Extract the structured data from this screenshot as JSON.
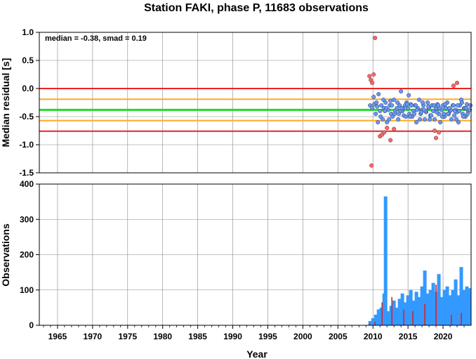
{
  "colors": {
    "zero_line": "#ee2222",
    "median_line": "#22dd22",
    "smad_line": "#ffaa22",
    "outlier_band": "#ee2222",
    "inlier_point": "#6699ee",
    "outlier_point": "#ff6666",
    "bar_total": "#3399ff",
    "bar_outlier": "#dd2222",
    "grid": "#888888"
  },
  "chart_data": [
    {
      "type": "scatter",
      "title": "Station FAKI, phase P, 11683 observations",
      "xlabel": "",
      "ylabel": "Median residual [s]",
      "xlim": [
        1962.4,
        2024.0
      ],
      "ylim": [
        -1.5,
        1.0
      ],
      "yticks": [
        "1.0",
        "0.5",
        "0.0",
        "-0.5",
        "-1.0",
        "-1.5"
      ],
      "grid": true,
      "annotation": "median = -0.38, smad = 0.19",
      "hlines": {
        "zero": 0.0,
        "median": -0.38,
        "smad_upper": -0.19,
        "smad_lower": -0.57,
        "outlier_upper": 0.0,
        "outlier_lower": -0.76
      },
      "series": [
        {
          "role": "inliers",
          "x": [
            2009.6,
            2009.9,
            2010.2,
            2010.4,
            2010.6,
            2010.8,
            2011.0,
            2011.2,
            2011.4,
            2011.6,
            2011.8,
            2012.0,
            2012.2,
            2012.4,
            2012.6,
            2012.8,
            2013.0,
            2013.2,
            2013.4,
            2013.6,
            2013.8,
            2014.0,
            2014.2,
            2014.4,
            2014.6,
            2014.8,
            2015.0,
            2015.2,
            2015.4,
            2015.6,
            2015.8,
            2016.0,
            2016.2,
            2016.4,
            2016.6,
            2016.8,
            2017.0,
            2017.2,
            2017.4,
            2017.6,
            2017.8,
            2018.0,
            2018.2,
            2018.4,
            2018.6,
            2018.8,
            2019.0,
            2019.2,
            2019.4,
            2019.6,
            2019.8,
            2020.0,
            2020.2,
            2020.4,
            2020.6,
            2020.8,
            2021.0,
            2021.2,
            2021.4,
            2021.6,
            2021.8,
            2022.0,
            2022.2,
            2022.4,
            2022.6,
            2022.8,
            2023.0,
            2023.2,
            2023.4,
            2023.6,
            2023.8,
            2010.1,
            2010.5,
            2011.1,
            2011.5,
            2011.9,
            2012.3,
            2012.7,
            2013.1,
            2013.5,
            2013.9,
            2014.3,
            2014.7,
            2015.1,
            2015.5,
            2015.9,
            2016.3,
            2016.7,
            2017.1,
            2017.5,
            2017.9,
            2018.3,
            2018.7,
            2019.1,
            2019.5,
            2019.9,
            2020.3,
            2020.7,
            2021.1,
            2021.5,
            2021.9,
            2022.3,
            2022.7,
            2023.1,
            2023.5,
            2023.9,
            2010.7,
            2011.7,
            2012.5,
            2013.7,
            2014.1,
            2014.9,
            2015.3,
            2016.1,
            2016.9,
            2017.3,
            2018.1,
            2019.3,
            2020.1,
            2020.9,
            2021.7,
            2022.1,
            2022.9,
            2023.3
          ],
          "y": [
            -0.3,
            -0.35,
            -0.28,
            -0.45,
            -0.32,
            -0.1,
            -0.4,
            -0.3,
            -0.55,
            -0.35,
            -0.25,
            -0.6,
            -0.38,
            -0.3,
            -0.45,
            -0.5,
            -0.2,
            -0.4,
            -0.35,
            -0.55,
            -0.3,
            -0.05,
            -0.4,
            -0.48,
            -0.3,
            -0.25,
            -0.35,
            -0.45,
            -0.28,
            -0.5,
            -0.4,
            -0.3,
            -0.6,
            -0.35,
            -0.2,
            -0.45,
            -0.38,
            -0.3,
            -0.55,
            -0.42,
            -0.25,
            -0.35,
            -0.48,
            -0.3,
            -0.4,
            -0.55,
            -0.35,
            -0.28,
            -0.45,
            -0.6,
            -0.38,
            -0.3,
            -0.5,
            -0.35,
            -0.25,
            -0.45,
            -0.4,
            -0.55,
            -0.3,
            -0.48,
            -0.38,
            -0.42,
            -0.6,
            -0.3,
            -0.2,
            -0.45,
            -0.35,
            -0.5,
            -0.28,
            -0.4,
            -0.38,
            -0.15,
            -0.25,
            -0.5,
            -0.2,
            -0.35,
            -0.55,
            -0.3,
            -0.45,
            -0.25,
            -0.4,
            -0.35,
            -0.5,
            -0.12,
            -0.3,
            -0.45,
            -0.38,
            -0.55,
            -0.25,
            -0.4,
            -0.32,
            -0.48,
            -0.3,
            -0.42,
            -0.35,
            -0.5,
            -0.28,
            -0.45,
            -0.38,
            -0.3,
            -0.55,
            -0.4,
            -0.25,
            -0.35,
            -0.45,
            -0.3,
            -0.6,
            -0.4,
            -0.22,
            -0.45,
            -0.35,
            -0.28,
            -0.5,
            -0.3,
            -0.42,
            -0.38,
            -0.55,
            -0.3,
            -0.45,
            -0.35,
            -0.4,
            -0.3,
            -0.5,
            -0.35
          ]
        },
        {
          "role": "outliers",
          "x": [
            2009.5,
            2009.7,
            2009.9,
            2010.1,
            2010.3,
            2011.0,
            2011.3,
            2011.6,
            2012.0,
            2012.5,
            2013.0,
            2018.8,
            2019.0,
            2019.4,
            2021.5,
            2022.0,
            2009.8
          ],
          "y": [
            0.22,
            0.15,
            0.1,
            0.25,
            0.9,
            -0.85,
            -0.82,
            -0.78,
            -0.7,
            -0.92,
            -0.72,
            -0.75,
            -0.88,
            -0.78,
            0.05,
            0.1,
            -1.37
          ]
        }
      ]
    },
    {
      "type": "bar",
      "title": "",
      "xlabel": "Year",
      "ylabel": "Observations",
      "xlim": [
        1962.4,
        2024.0
      ],
      "ylim": [
        0,
        400
      ],
      "yticks": [
        "400",
        "300",
        "200",
        "100",
        "0"
      ],
      "xticks": [
        "1965",
        "1970",
        "1975",
        "1980",
        "1985",
        "1990",
        "1995",
        "2000",
        "2005",
        "2010",
        "2015",
        "2020"
      ],
      "grid": true,
      "series": [
        {
          "role": "total",
          "x": [
            2009.6,
            2010.0,
            2010.4,
            2010.8,
            2011.2,
            2011.6,
            2011.8,
            2012.2,
            2012.6,
            2013.0,
            2013.4,
            2013.8,
            2014.2,
            2014.6,
            2015.0,
            2015.4,
            2015.8,
            2016.2,
            2016.6,
            2017.0,
            2017.4,
            2017.8,
            2018.2,
            2018.6,
            2019.0,
            2019.4,
            2019.8,
            2020.2,
            2020.6,
            2021.0,
            2021.4,
            2021.8,
            2022.2,
            2022.6,
            2023.0,
            2023.4,
            2023.8
          ],
          "y": [
            12,
            20,
            30,
            45,
            50,
            90,
            365,
            40,
            55,
            70,
            50,
            75,
            90,
            65,
            85,
            100,
            70,
            95,
            80,
            110,
            155,
            90,
            100,
            120,
            95,
            145,
            80,
            100,
            110,
            85,
            100,
            130,
            85,
            165,
            100,
            110,
            105
          ]
        },
        {
          "role": "outliers",
          "x": [
            2009.5,
            2010.3,
            2011.3,
            2012.7,
            2014.4,
            2015.7,
            2017.4,
            2019.0,
            2021.2,
            2022.6
          ],
          "y": [
            5,
            10,
            65,
            80,
            45,
            40,
            60,
            115,
            30,
            35
          ]
        }
      ]
    }
  ]
}
